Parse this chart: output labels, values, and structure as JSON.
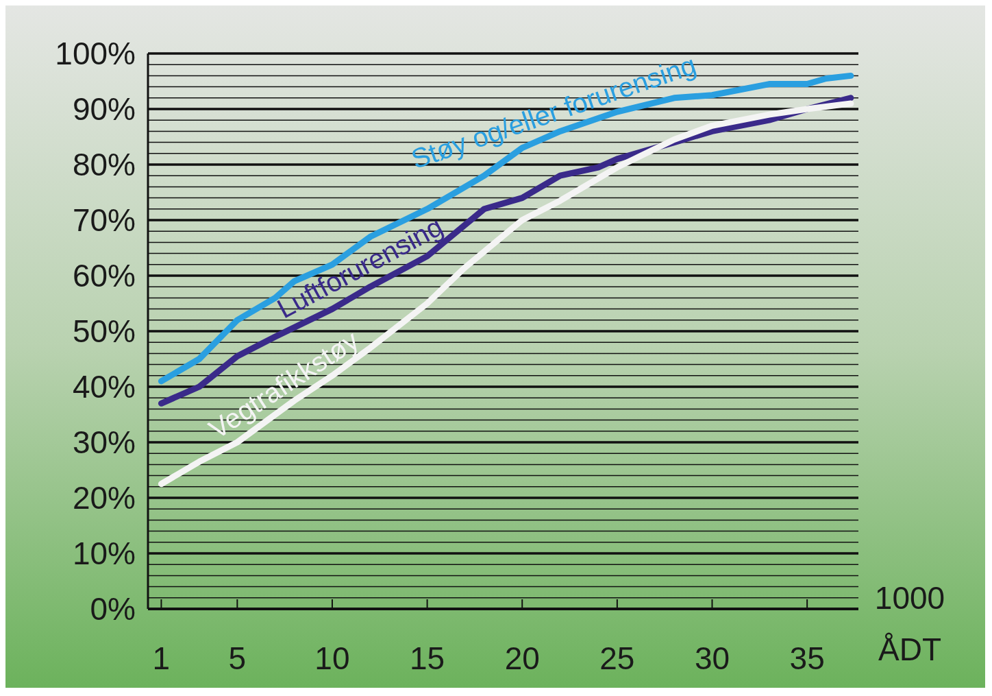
{
  "chart_data": {
    "type": "line",
    "xlabel": "1000\nÅDT",
    "xlim": [
      0.3,
      37.7
    ],
    "xticks": [
      1,
      5,
      10,
      15,
      20,
      25,
      30,
      35
    ],
    "ylim": [
      0,
      100
    ],
    "yticks": [
      {
        "value": 0,
        "label": "0%"
      },
      {
        "value": 2,
        "label": null
      },
      {
        "value": 4,
        "label": null
      },
      {
        "value": 6,
        "label": null
      },
      {
        "value": 8,
        "label": null
      },
      {
        "value": 10,
        "label": "10%"
      },
      {
        "value": 12,
        "label": null
      },
      {
        "value": 14,
        "label": null
      },
      {
        "value": 16,
        "label": null
      },
      {
        "value": 18,
        "label": null
      },
      {
        "value": 20,
        "label": "20%"
      },
      {
        "value": 22,
        "label": null
      },
      {
        "value": 24,
        "label": null
      },
      {
        "value": 26,
        "label": null
      },
      {
        "value": 28,
        "label": null
      },
      {
        "value": 30,
        "label": "30%"
      },
      {
        "value": 32,
        "label": null
      },
      {
        "value": 34,
        "label": null
      },
      {
        "value": 36,
        "label": null
      },
      {
        "value": 38,
        "label": null
      },
      {
        "value": 40,
        "label": "40%"
      },
      {
        "value": 42,
        "label": null
      },
      {
        "value": 44,
        "label": null
      },
      {
        "value": 46,
        "label": null
      },
      {
        "value": 48,
        "label": null
      },
      {
        "value": 50,
        "label": "50%"
      },
      {
        "value": 52,
        "label": null
      },
      {
        "value": 54,
        "label": null
      },
      {
        "value": 56,
        "label": null
      },
      {
        "value": 58,
        "label": null
      },
      {
        "value": 60,
        "label": "60%"
      },
      {
        "value": 62,
        "label": null
      },
      {
        "value": 64,
        "label": null
      },
      {
        "value": 66,
        "label": null
      },
      {
        "value": 68,
        "label": null
      },
      {
        "value": 70,
        "label": "70%"
      },
      {
        "value": 72,
        "label": null
      },
      {
        "value": 74,
        "label": null
      },
      {
        "value": 76,
        "label": null
      },
      {
        "value": 78,
        "label": null
      },
      {
        "value": 80,
        "label": "80%"
      },
      {
        "value": 82,
        "label": null
      },
      {
        "value": 84,
        "label": null
      },
      {
        "value": 86,
        "label": null
      },
      {
        "value": 88,
        "label": null
      },
      {
        "value": 90,
        "label": "90%"
      },
      {
        "value": 92,
        "label": null
      },
      {
        "value": 94,
        "label": null
      },
      {
        "value": 96,
        "label": null
      },
      {
        "value": 98,
        "label": null
      },
      {
        "value": 100,
        "label": "100%"
      }
    ],
    "grid": "y",
    "legend": false,
    "line_style": "solid",
    "marker": "none",
    "series": [
      {
        "name": "Støy og/eller forurensing",
        "color": "#2a9fe0",
        "x": [
          1,
          3,
          5,
          7,
          8,
          10,
          12,
          15,
          18,
          20,
          22,
          25,
          28,
          30,
          33,
          35,
          36,
          37.3
        ],
        "values": [
          41,
          45,
          52,
          56,
          59,
          62,
          67,
          72,
          78,
          83,
          86,
          89.5,
          92,
          92.5,
          94.5,
          94.5,
          95.5,
          96
        ]
      },
      {
        "name": "Luftforurensing",
        "color": "#3a2a8a",
        "x": [
          1,
          3,
          5,
          7,
          10,
          12,
          15,
          18,
          20,
          22,
          24,
          25,
          28,
          30,
          33,
          35,
          37.3
        ],
        "values": [
          37,
          40,
          45.5,
          49,
          54,
          58,
          63.5,
          72,
          74,
          78,
          79.5,
          81,
          84,
          86,
          88,
          90,
          92
        ]
      },
      {
        "name": "Vegtrafikkstøy",
        "color": "#f4f4f4",
        "x": [
          1,
          3,
          5,
          6,
          8,
          10,
          12,
          15,
          17,
          20,
          22,
          25,
          28,
          30,
          33,
          35,
          37.3
        ],
        "values": [
          22.5,
          26.5,
          30,
          32.5,
          37.5,
          42,
          47,
          55,
          61.5,
          70,
          73.5,
          79.5,
          84.5,
          87,
          89,
          90,
          91
        ]
      }
    ]
  }
}
